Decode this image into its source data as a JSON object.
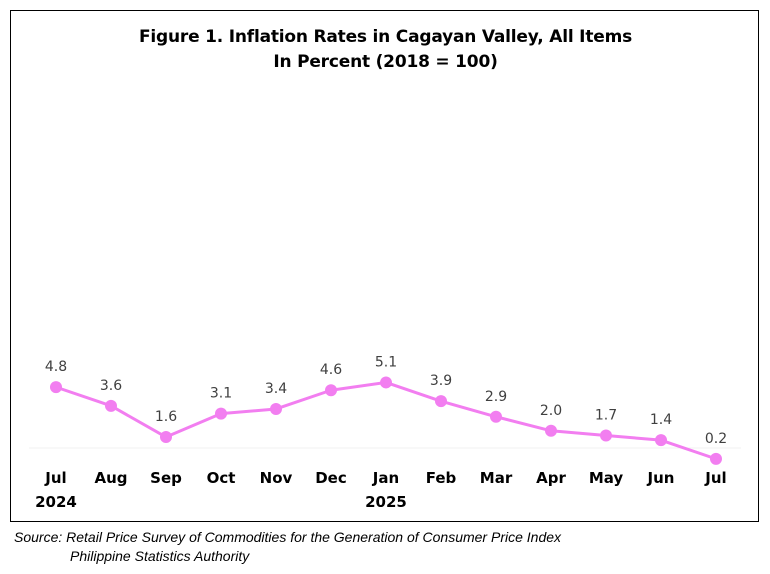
{
  "chart_data": {
    "type": "line",
    "title": "Figure 1. Inflation Rates in Cagayan Valley, All Items",
    "subtitle": "In Percent (2018 = 100)",
    "categories": [
      "Jul",
      "Aug",
      "Sep",
      "Oct",
      "Nov",
      "Dec",
      "Jan",
      "Feb",
      "Mar",
      "Apr",
      "May",
      "Jun",
      "Jul"
    ],
    "year_labels": [
      "2024",
      "",
      "",
      "",
      "",
      "",
      "2025",
      "",
      "",
      "",
      "",
      "",
      ""
    ],
    "series": [
      {
        "values": [
          4.8,
          3.6,
          1.6,
          3.1,
          3.4,
          4.6,
          5.1,
          3.9,
          2.9,
          2.0,
          1.7,
          1.4,
          0.2
        ],
        "labels": [
          "4.8",
          "3.6",
          "1.6",
          "3.1",
          "3.4",
          "4.6",
          "5.1",
          "3.9",
          "2.9",
          "2.0",
          "1.7",
          "1.4",
          "0.2"
        ],
        "color": "#f27ef0"
      }
    ],
    "ylim": [
      0,
      6
    ],
    "grid": false,
    "legend": "none",
    "xlabel": "",
    "ylabel": ""
  },
  "source": {
    "line1": "Source: Retail Price Survey of Commodities for the Generation of Consumer Price Index",
    "line2": "Philippine Statistics Authority"
  }
}
